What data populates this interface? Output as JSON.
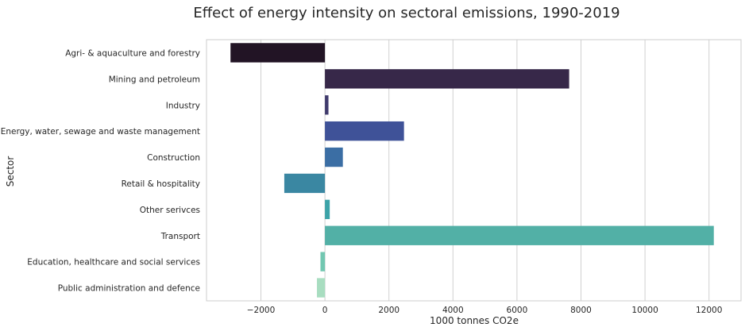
{
  "chart_data": {
    "type": "bar",
    "orientation": "horizontal",
    "title": "Effect of energy intensity on sectoral emissions, 1990-2019",
    "xlabel": "1000 tonnes CO2e",
    "ylabel": "Sector",
    "xlim": [
      -3700,
      13000
    ],
    "xticks": [
      -2000,
      0,
      2000,
      4000,
      6000,
      8000,
      10000,
      12000
    ],
    "grid": "vertical",
    "categories": [
      "Agri- & aquaculture and forestry",
      "Mining and petroleum",
      "Industry",
      "Energy, water, sewage and waste management",
      "Construction",
      "Retail & hospitality",
      "Other serivces",
      "Transport",
      "Education, healthcare and social services",
      "Public administration and defence"
    ],
    "values": [
      -2950,
      7630,
      110,
      2470,
      560,
      -1270,
      150,
      12150,
      -140,
      -250
    ],
    "colors": [
      "#221425",
      "#372849",
      "#3f3a6c",
      "#3f5298",
      "#3b6ea4",
      "#3a87a2",
      "#3ca3a8",
      "#52b0a6",
      "#72c7b1",
      "#a8ddc0"
    ]
  }
}
